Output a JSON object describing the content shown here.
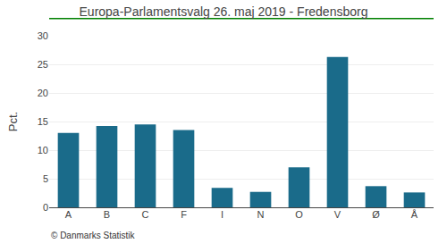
{
  "chart_data": {
    "type": "bar",
    "title": "Europa-Parlamentsvalg 26. maj 2019 - Fredensborg",
    "ylabel": "Pct.",
    "categories": [
      "A",
      "B",
      "C",
      "F",
      "I",
      "N",
      "O",
      "V",
      "Ø",
      "Å"
    ],
    "values": [
      13.0,
      14.2,
      14.5,
      13.5,
      3.4,
      2.7,
      7.0,
      26.3,
      3.7,
      2.6
    ],
    "color": "#1a6b8a",
    "ylim": [
      0,
      30
    ],
    "yticks": [
      0,
      5,
      10,
      15,
      20,
      25,
      30
    ],
    "grid": true,
    "annotations": [
      "© Danmarks Statistik"
    ]
  }
}
